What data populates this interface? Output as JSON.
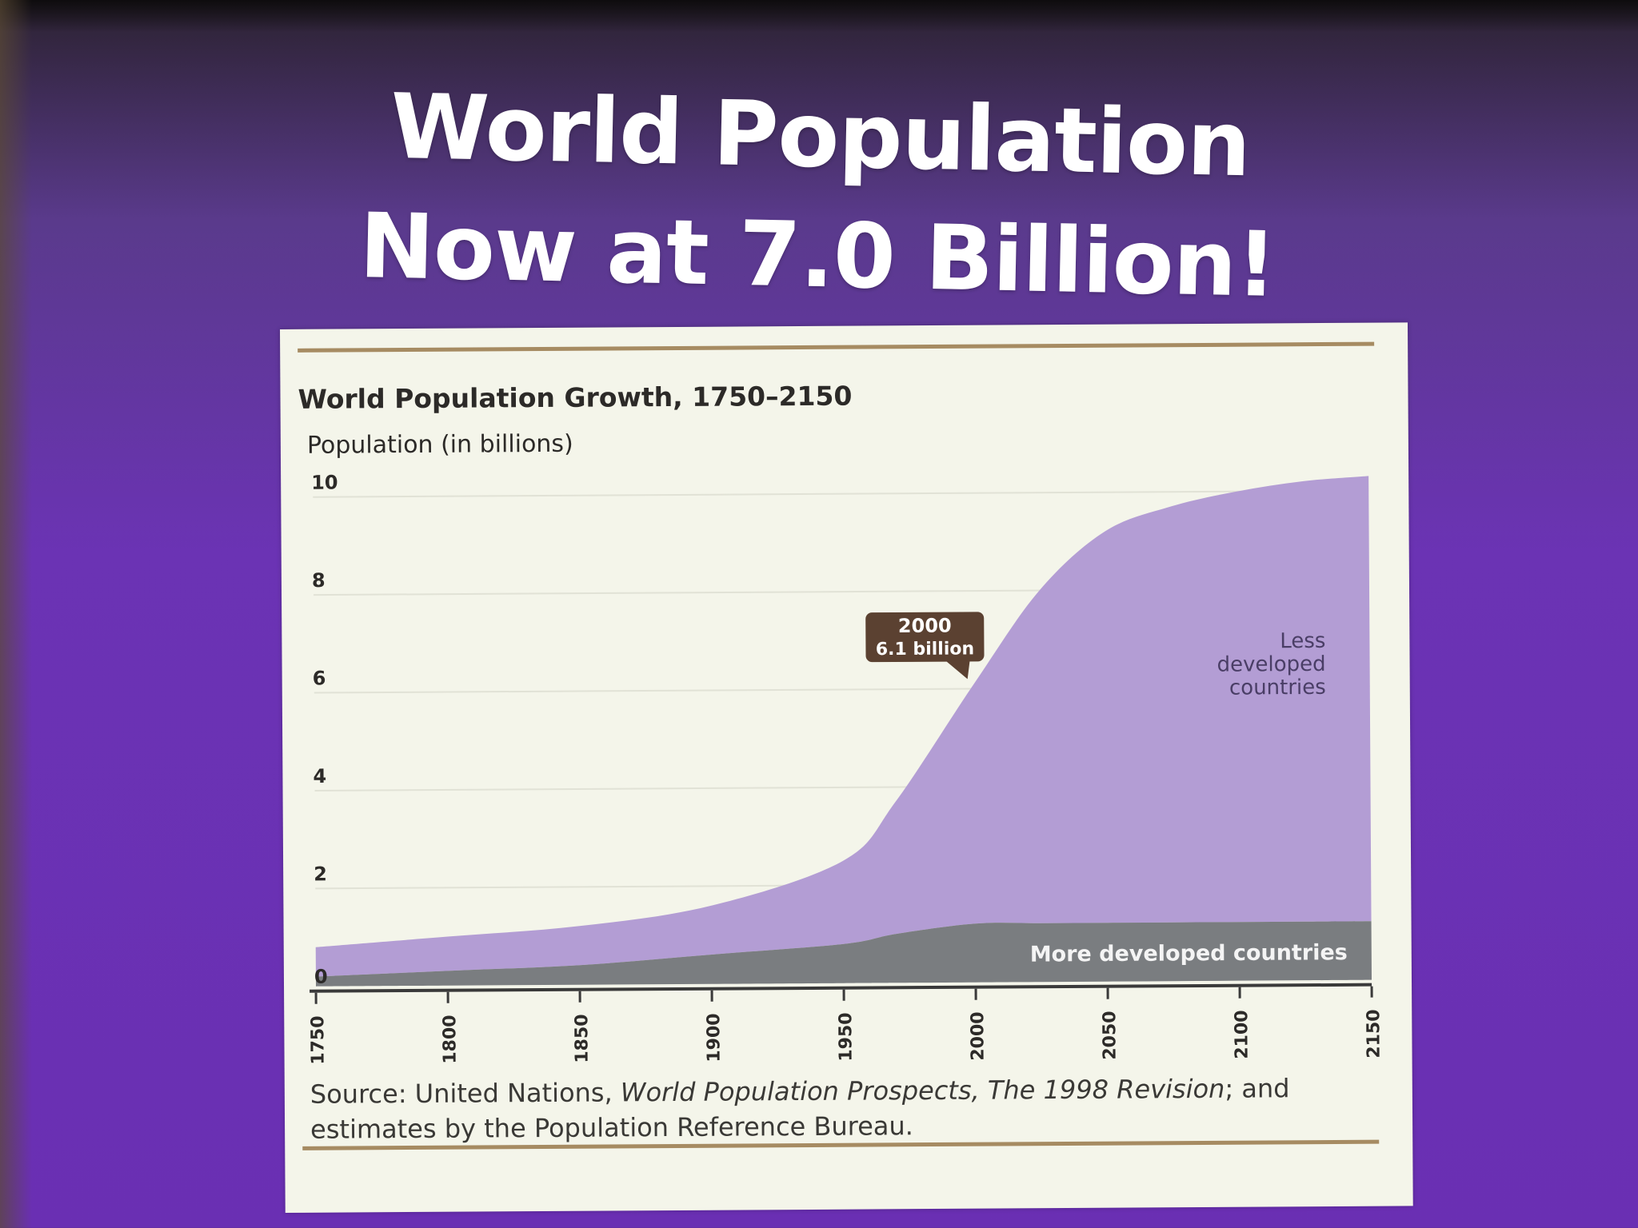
{
  "slide": {
    "title_line1": "World Population",
    "title_line2": "Now at 7.0 Billion!"
  },
  "chart_data": {
    "type": "area",
    "title": "World Population Growth, 1750–2150",
    "ylabel": "Population (in billions)",
    "xlabel": "",
    "xlim": [
      1750,
      2150
    ],
    "ylim": [
      0,
      10
    ],
    "x_ticks": [
      "1750",
      "1800",
      "1850",
      "1900",
      "1950",
      "2000",
      "2050",
      "2100",
      "2150"
    ],
    "y_ticks": [
      "0",
      "2",
      "4",
      "6",
      "8",
      "10"
    ],
    "grid": true,
    "stacked": true,
    "x": [
      1750,
      1800,
      1850,
      1900,
      1950,
      1970,
      2000,
      2025,
      2050,
      2075,
      2100,
      2125,
      2150
    ],
    "series": [
      {
        "name": "More developed countries",
        "color": "#7a7d80",
        "values": [
          0.2,
          0.3,
          0.4,
          0.6,
          0.8,
          1.0,
          1.2,
          1.2,
          1.2,
          1.2,
          1.2,
          1.2,
          1.2
        ]
      },
      {
        "name": "Less developed countries",
        "color": "#b39dd4",
        "values": [
          0.6,
          0.7,
          0.8,
          1.0,
          1.7,
          2.7,
          4.9,
          6.8,
          8.0,
          8.5,
          8.8,
          9.0,
          9.1
        ]
      }
    ],
    "annotations": [
      {
        "x": 2000,
        "y": 6.1,
        "line1": "2000",
        "line2": "6.1 billion"
      }
    ],
    "source_prefix": "Source: United Nations, ",
    "source_italic1": "World Population Prospects, The 1998 Revision",
    "source_suffix": "; and estimates by the Population Reference Bureau."
  }
}
